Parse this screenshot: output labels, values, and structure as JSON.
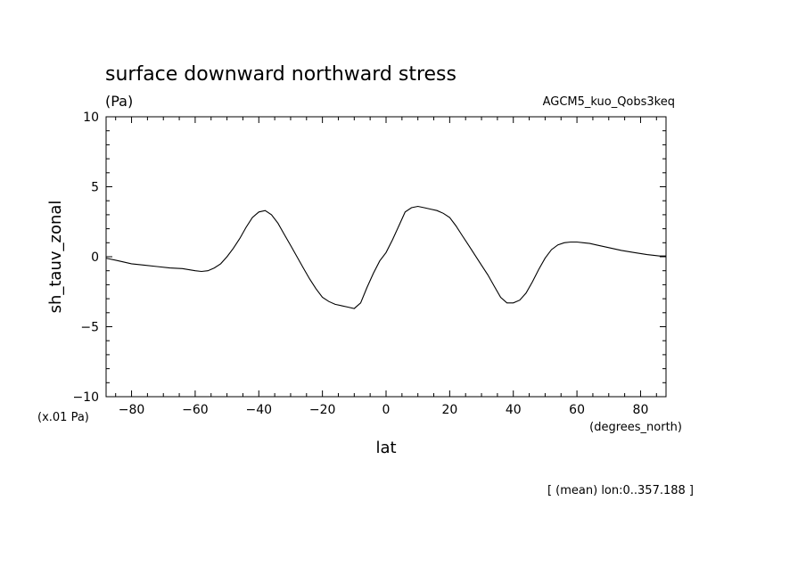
{
  "chart_data": {
    "type": "line",
    "title": "surface downward northward stress",
    "units": "(Pa)",
    "experiment": "AGCM5_kuo_Qobs3keq",
    "ylabel": "sh_tauv_zonal",
    "xlabel": "lat",
    "y_scale_note": "(x.01 Pa)",
    "x_units": "(degrees_north)",
    "footnote": "[ (mean) lon:0..357.188 ]",
    "xlim": [
      -88,
      88
    ],
    "ylim": [
      -10,
      10
    ],
    "x_ticks": [
      -80,
      -60,
      -40,
      -20,
      0,
      20,
      40,
      60,
      80
    ],
    "x_tick_labels": [
      "−80",
      "−60",
      "−40",
      "−20",
      "0",
      "20",
      "40",
      "60",
      "80"
    ],
    "y_ticks": [
      -10,
      -5,
      0,
      5,
      10
    ],
    "y_tick_labels": [
      "−10",
      "−5",
      "0",
      "5",
      "10"
    ],
    "grid": false,
    "series": [
      {
        "x": [
          -88,
          -84,
          -80,
          -76,
          -72,
          -68,
          -64,
          -60,
          -58,
          -56,
          -54,
          -52,
          -50,
          -48,
          -46,
          -44,
          -42,
          -40,
          -38,
          -36,
          -34,
          -32,
          -30,
          -28,
          -26,
          -24,
          -22,
          -20,
          -18,
          -16,
          -14,
          -12,
          -10,
          -8,
          -6,
          -4,
          -2,
          0,
          2,
          4,
          6,
          8,
          10,
          12,
          14,
          16,
          18,
          20,
          22,
          24,
          26,
          28,
          30,
          32,
          34,
          36,
          38,
          40,
          42,
          44,
          46,
          48,
          50,
          52,
          54,
          56,
          58,
          60,
          62,
          64,
          66,
          70,
          74,
          78,
          82,
          86,
          88
        ],
        "y": [
          -0.1,
          -0.3,
          -0.5,
          -0.6,
          -0.7,
          -0.8,
          -0.85,
          -1.0,
          -1.05,
          -1.0,
          -0.8,
          -0.5,
          0.0,
          0.6,
          1.3,
          2.1,
          2.8,
          3.2,
          3.3,
          3.0,
          2.4,
          1.6,
          0.8,
          0.0,
          -0.8,
          -1.6,
          -2.3,
          -2.9,
          -3.2,
          -3.4,
          -3.5,
          -3.6,
          -3.7,
          -3.3,
          -2.2,
          -1.2,
          -0.3,
          0.3,
          1.2,
          2.2,
          3.2,
          3.5,
          3.6,
          3.5,
          3.4,
          3.3,
          3.1,
          2.8,
          2.2,
          1.5,
          0.8,
          0.1,
          -0.6,
          -1.3,
          -2.1,
          -2.9,
          -3.3,
          -3.3,
          -3.1,
          -2.6,
          -1.8,
          -0.9,
          -0.1,
          0.5,
          0.85,
          1.0,
          1.05,
          1.05,
          1.0,
          0.95,
          0.85,
          0.65,
          0.45,
          0.3,
          0.15,
          0.05,
          0.05
        ]
      }
    ]
  }
}
